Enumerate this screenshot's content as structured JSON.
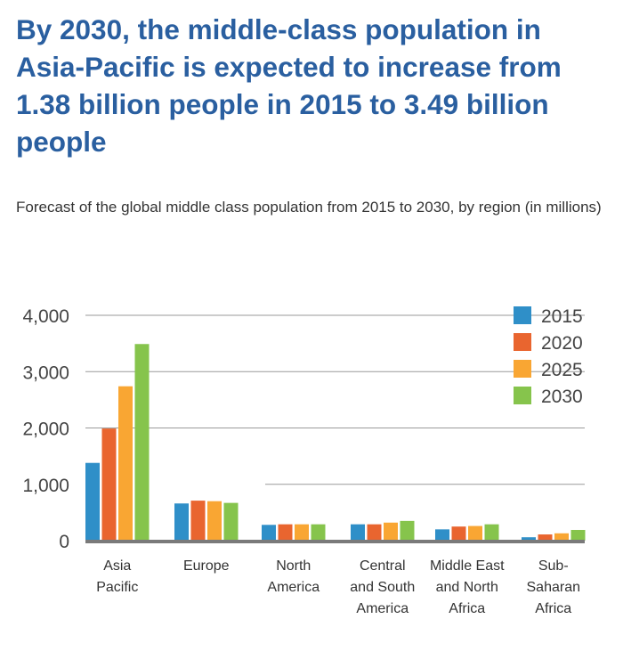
{
  "headline": "By 2030, the middle-class population in Asia-Pacific is expected to increase from 1.38 billion people in 2015 to 3.49 billion people",
  "subtitle": "Forecast of the global middle class population from 2015 to 2030, by region (in millions)",
  "chart_data": {
    "type": "bar",
    "categories": [
      [
        "Asia",
        "Pacific"
      ],
      [
        "Europe"
      ],
      [
        "North",
        "America"
      ],
      [
        "Central",
        "and South",
        "America"
      ],
      [
        "Middle East",
        "and North",
        "Africa"
      ],
      [
        "Sub-",
        "Saharan",
        "Africa"
      ]
    ],
    "series": [
      {
        "name": "2015",
        "color": "#2f8fc8",
        "values": [
          1380,
          660,
          280,
          290,
          200,
          60
        ]
      },
      {
        "name": "2020",
        "color": "#e9652f",
        "values": [
          1990,
          710,
          290,
          290,
          250,
          110
        ]
      },
      {
        "name": "2025",
        "color": "#f9a633",
        "values": [
          2740,
          700,
          290,
          320,
          260,
          130
        ]
      },
      {
        "name": "2030",
        "color": "#86c44c",
        "values": [
          3490,
          670,
          290,
          350,
          290,
          190
        ]
      }
    ],
    "y_ticks": [
      "0",
      "1,000",
      "2,000",
      "3,000",
      "4,000"
    ],
    "y_tick_values": [
      0,
      1000,
      2000,
      3000,
      4000
    ],
    "ylim": [
      0,
      4000
    ],
    "grid": true,
    "legend_position": "top-right",
    "xlabel": "",
    "ylabel": ""
  }
}
